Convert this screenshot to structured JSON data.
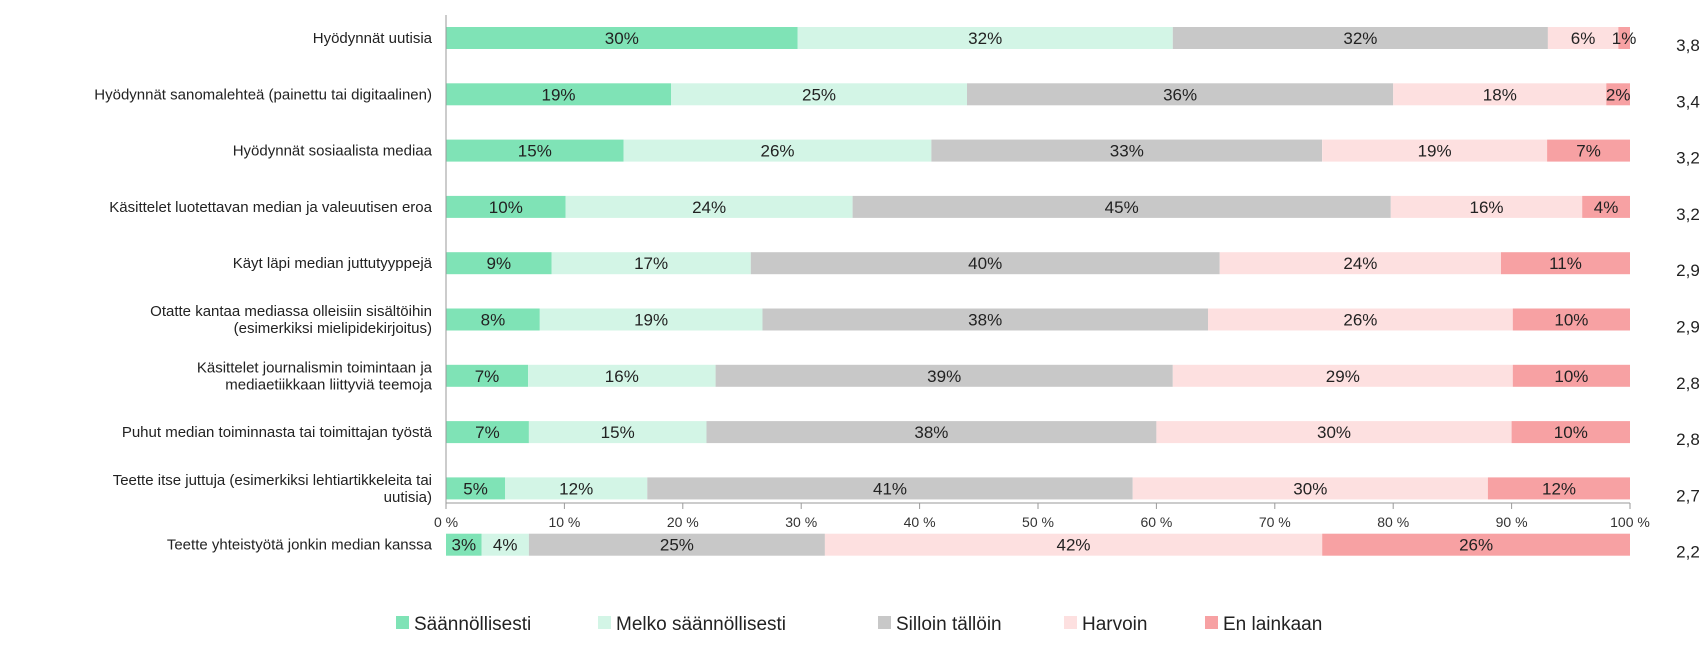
{
  "chart_data": {
    "type": "bar",
    "orientation": "horizontal",
    "stacked": true,
    "percent": true,
    "xlim": [
      0,
      100
    ],
    "x_ticks": [
      {
        "value": 0,
        "label": "0 %"
      },
      {
        "value": 10,
        "label": "10 %"
      },
      {
        "value": 20,
        "label": "20 %"
      },
      {
        "value": 30,
        "label": "30 %"
      },
      {
        "value": 40,
        "label": "40 %"
      },
      {
        "value": 50,
        "label": "50 %"
      },
      {
        "value": 60,
        "label": "60 %"
      },
      {
        "value": 70,
        "label": "70 %"
      },
      {
        "value": 80,
        "label": "80 %"
      },
      {
        "value": 90,
        "label": "90 %"
      },
      {
        "value": 100,
        "label": "100 %"
      }
    ],
    "categories": [
      "Hyödynnät uutisia",
      "Hyödynnät sanomalehteä (painettu tai digitaalinen)",
      "Hyödynnät sosiaalista mediaa",
      "Käsittelet luotettavan median ja valeuutisen eroa",
      "Käyt läpi median juttutyyppejä",
      "Otatte kantaa mediassa olleisiin sisältöihin (esimerkiksi mielipidekirjoitus)",
      "Käsittelet journalismin toimintaan ja mediaetiikkaan liittyviä teemoja",
      "Puhut median toiminnasta tai toimittajan työstä",
      "Teette itse juttuja (esimerkiksi lehtiartikkeleita tai uutisia)",
      "Teette yhteistyötä jonkin median kanssa"
    ],
    "category_lines": [
      [
        "Hyödynnät uutisia"
      ],
      [
        "Hyödynnät sanomalehteä (painettu tai digitaalinen)"
      ],
      [
        "Hyödynnät sosiaalista mediaa"
      ],
      [
        "Käsittelet luotettavan median ja valeuutisen eroa"
      ],
      [
        "Käyt läpi median juttutyyppejä"
      ],
      [
        "Otatte kantaa mediassa olleisiin sisältöihin",
        "(esimerkiksi mielipidekirjoitus)"
      ],
      [
        "Käsittelet journalismin toimintaan ja",
        "mediaetiikkaan liittyviä teemoja"
      ],
      [
        "Puhut median toiminnasta tai toimittajan työstä"
      ],
      [
        "Teette itse juttuja (esimerkiksi lehtiartikkeleita tai",
        "uutisia)"
      ],
      [
        "Teette yhteistyötä jonkin median kanssa"
      ]
    ],
    "series": [
      {
        "name": "Säännöllisesti",
        "color": "#7fe3b6",
        "values": [
          30,
          19,
          15,
          10,
          9,
          8,
          7,
          7,
          5,
          3
        ],
        "labels": [
          "30%",
          "19%",
          "15%",
          "10%",
          "9%",
          "8%",
          "7%",
          "7%",
          "5%",
          "3%"
        ]
      },
      {
        "name": "Melko säännöllisesti",
        "color": "#d3f5e6",
        "values": [
          32,
          25,
          26,
          24,
          17,
          19,
          16,
          15,
          12,
          4
        ],
        "labels": [
          "32%",
          "25%",
          "26%",
          "24%",
          "17%",
          "19%",
          "16%",
          "15%",
          "12%",
          "4%"
        ]
      },
      {
        "name": "Silloin tällöin",
        "color": "#c8c8c8",
        "values": [
          32,
          36,
          33,
          45,
          40,
          38,
          39,
          38,
          41,
          25
        ],
        "labels": [
          "32%",
          "36%",
          "33%",
          "45%",
          "40%",
          "38%",
          "39%",
          "38%",
          "41%",
          "25%"
        ]
      },
      {
        "name": "Harvoin",
        "color": "#fde0e0",
        "values": [
          6,
          18,
          19,
          16,
          24,
          26,
          29,
          30,
          30,
          42
        ],
        "labels": [
          "6%",
          "18%",
          "19%",
          "16%",
          "24%",
          "26%",
          "29%",
          "30%",
          "30%",
          "42%"
        ]
      },
      {
        "name": "En lainkaan",
        "color": "#f7a1a3",
        "values": [
          1,
          2,
          7,
          4,
          11,
          10,
          10,
          10,
          12,
          26
        ],
        "labels": [
          "1%",
          "2%",
          "7%",
          "4%",
          "11%",
          "10%",
          "10%",
          "10%",
          "12%",
          "26%"
        ]
      }
    ],
    "means": [
      "3,8",
      "3,4",
      "3,2",
      "3,2",
      "2,9",
      "2,9",
      "2,8",
      "2,8",
      "2,7",
      "2,2"
    ],
    "legend_position": "bottom",
    "grid": false
  }
}
